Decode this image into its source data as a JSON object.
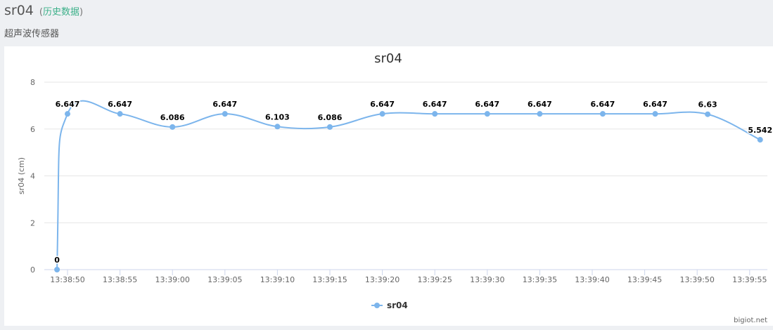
{
  "header": {
    "device_name": "sr04",
    "paren_open": "(",
    "history_link": "历史数据",
    "paren_close": ")",
    "subtitle": "超声波传感器"
  },
  "watermark": "bigiot.net",
  "colors": {
    "series": "#7cb5ec",
    "grid": "#e6e6e6",
    "axis_line": "#ccd6eb",
    "link": "#3cb089",
    "background": "#eef0f3"
  },
  "chart_data": {
    "type": "line",
    "title": "sr04",
    "ylabel": "sr04 (cm)",
    "xlabel": "",
    "ylim": [
      0,
      8
    ],
    "yticks": [
      0,
      2,
      4,
      6,
      8
    ],
    "x_ticks": [
      "13:38:50",
      "13:38:55",
      "13:39:00",
      "13:39:05",
      "13:39:10",
      "13:39:15",
      "13:39:20",
      "13:39:25",
      "13:39:30",
      "13:39:35",
      "13:39:40",
      "13:39:45",
      "13:39:50",
      "13:39:55"
    ],
    "grid": true,
    "legend": "bottom-center",
    "series": [
      {
        "name": "sr04",
        "points": [
          {
            "x": "13:38:49",
            "y": 0,
            "label": "0"
          },
          {
            "x": "13:38:50",
            "y": 6.647,
            "label": "6.647"
          },
          {
            "x": "13:38:55",
            "y": 6.647,
            "label": "6.647"
          },
          {
            "x": "13:39:00",
            "y": 6.086,
            "label": "6.086"
          },
          {
            "x": "13:39:05",
            "y": 6.647,
            "label": "6.647"
          },
          {
            "x": "13:39:10",
            "y": 6.103,
            "label": "6.103"
          },
          {
            "x": "13:39:15",
            "y": 6.086,
            "label": "6.086"
          },
          {
            "x": "13:39:20",
            "y": 6.647,
            "label": "6.647"
          },
          {
            "x": "13:39:25",
            "y": 6.647,
            "label": "6.647"
          },
          {
            "x": "13:39:30",
            "y": 6.647,
            "label": "6.647"
          },
          {
            "x": "13:39:35",
            "y": 6.647,
            "label": "6.647"
          },
          {
            "x": "13:39:41",
            "y": 6.647,
            "label": "6.647"
          },
          {
            "x": "13:39:46",
            "y": 6.647,
            "label": "6.647"
          },
          {
            "x": "13:39:51",
            "y": 6.63,
            "label": "6.63"
          },
          {
            "x": "13:39:56",
            "y": 5.542,
            "label": "5.542"
          }
        ]
      }
    ]
  }
}
